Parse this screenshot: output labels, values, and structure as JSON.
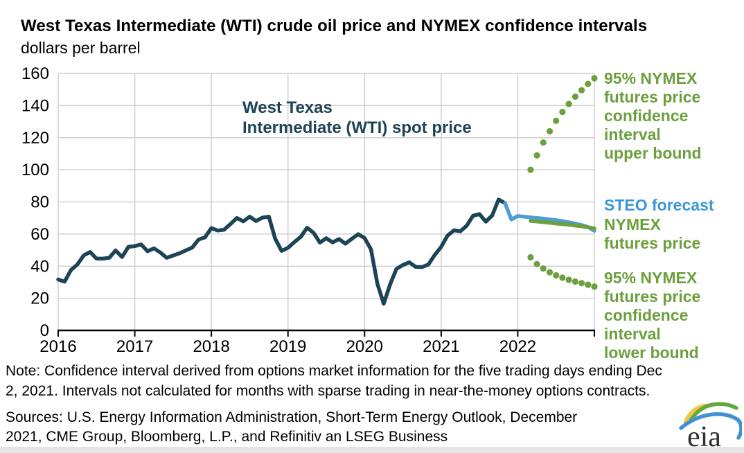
{
  "header": {
    "title": "West Texas Intermediate (WTI) crude oil price and NYMEX confidence intervals",
    "subtitle": "dollars per barrel"
  },
  "colors": {
    "spot_navy": "#1d4356",
    "steo_blue": "#4f9cd6",
    "nymex_green": "#6ba03d",
    "gridline": "#d2d2d2",
    "axis": "#000000"
  },
  "annotations": {
    "spot_price": "West Texas\nIntermediate (WTI) spot price",
    "upper_bound": "95% NYMEX\nfutures price\nconfidence\ninterval\nupper bound",
    "steo": "STEO forecast",
    "nymex_futures": "NYMEX\nfutures price",
    "lower_bound": "95% NYMEX\nfutures price\nconfidence\ninterval\nlower bound"
  },
  "note": {
    "text": "Note: Confidence interval derived from options market information for the five trading days ending Dec\n2, 2021. Intervals not calculated for months with sparse trading in near-the-money options contracts."
  },
  "sources": {
    "text": "Sources: U.S. Energy Information Administration, Short-Term Energy Outlook, December\n2021, CME Group, Bloomberg, L.P., and Refinitiv an LSEG Business"
  },
  "logo": {
    "text": "eia"
  },
  "chart_data": {
    "type": "line",
    "title": "West Texas Intermediate (WTI) crude oil price and NYMEX confidence intervals",
    "ylabel": "dollars per barrel",
    "xlabel": "",
    "ylim": [
      0,
      160
    ],
    "ytick_step": 20,
    "xlim": [
      2016,
      2023
    ],
    "xticks": [
      2016,
      2017,
      2018,
      2019,
      2020,
      2021,
      2022
    ],
    "grid": true,
    "series": [
      {
        "id": "wti-spot-line",
        "name": "West Texas Intermediate (WTI) spot price",
        "style": "line",
        "color": "#1d4356",
        "x_start": 2016.0,
        "x_step": 0.08333,
        "values": [
          31.7,
          30.3,
          37.6,
          41.0,
          46.7,
          48.8,
          44.7,
          44.7,
          45.2,
          49.8,
          45.7,
          52.0,
          52.5,
          53.5,
          49.3,
          51.1,
          48.5,
          45.2,
          46.6,
          48.0,
          49.8,
          51.6,
          56.6,
          57.9,
          63.7,
          62.2,
          62.7,
          66.3,
          70.0,
          67.9,
          70.8,
          68.1,
          70.2,
          70.8,
          57.0,
          49.5,
          51.4,
          55.0,
          58.2,
          63.9,
          60.8,
          54.7,
          57.4,
          54.8,
          56.9,
          54.0,
          57.0,
          59.9,
          57.5,
          50.5,
          29.2,
          16.6,
          28.6,
          38.3,
          40.7,
          42.4,
          39.6,
          39.4,
          41.0,
          47.0,
          52.0,
          59.0,
          62.3,
          61.7,
          65.2,
          71.4,
          72.4,
          67.7,
          71.6,
          81.5,
          79.2
        ]
      },
      {
        "id": "steo-forecast-line",
        "name": "STEO forecast",
        "style": "line",
        "color": "#4f9cd6",
        "x_start": 2021.8333,
        "x_step": 0.08333,
        "values": [
          79.2,
          69.0,
          71.2,
          70.8,
          70.4,
          70.0,
          69.6,
          69.1,
          68.6,
          68.0,
          67.3,
          66.5,
          65.6,
          64.4,
          62.0
        ]
      },
      {
        "id": "nymex-futures-line",
        "name": "NYMEX futures price",
        "style": "line",
        "color": "#6ba03d",
        "x_start": 2022.1667,
        "x_step": 0.08333,
        "values": [
          68.2,
          67.8,
          67.4,
          67.0,
          66.6,
          66.2,
          65.8,
          65.3,
          64.8,
          64.2,
          63.5
        ]
      },
      {
        "id": "upper-bound-dots",
        "name": "95% NYMEX futures price confidence interval upper bound",
        "style": "dots",
        "color": "#6ba03d",
        "x_start": 2022.1667,
        "x_step": 0.08333,
        "values": [
          100,
          109,
          117,
          124,
          130.5,
          136,
          141,
          145.5,
          149.5,
          153.5,
          157
        ]
      },
      {
        "id": "lower-bound-dots",
        "name": "95% NYMEX futures price confidence interval lower bound",
        "style": "dots",
        "color": "#6ba03d",
        "x_start": 2022.1667,
        "x_step": 0.08333,
        "values": [
          45.5,
          41.3,
          38.5,
          36.2,
          34.3,
          32.8,
          31.5,
          30.4,
          29.4,
          28.4,
          27.3
        ]
      }
    ]
  }
}
